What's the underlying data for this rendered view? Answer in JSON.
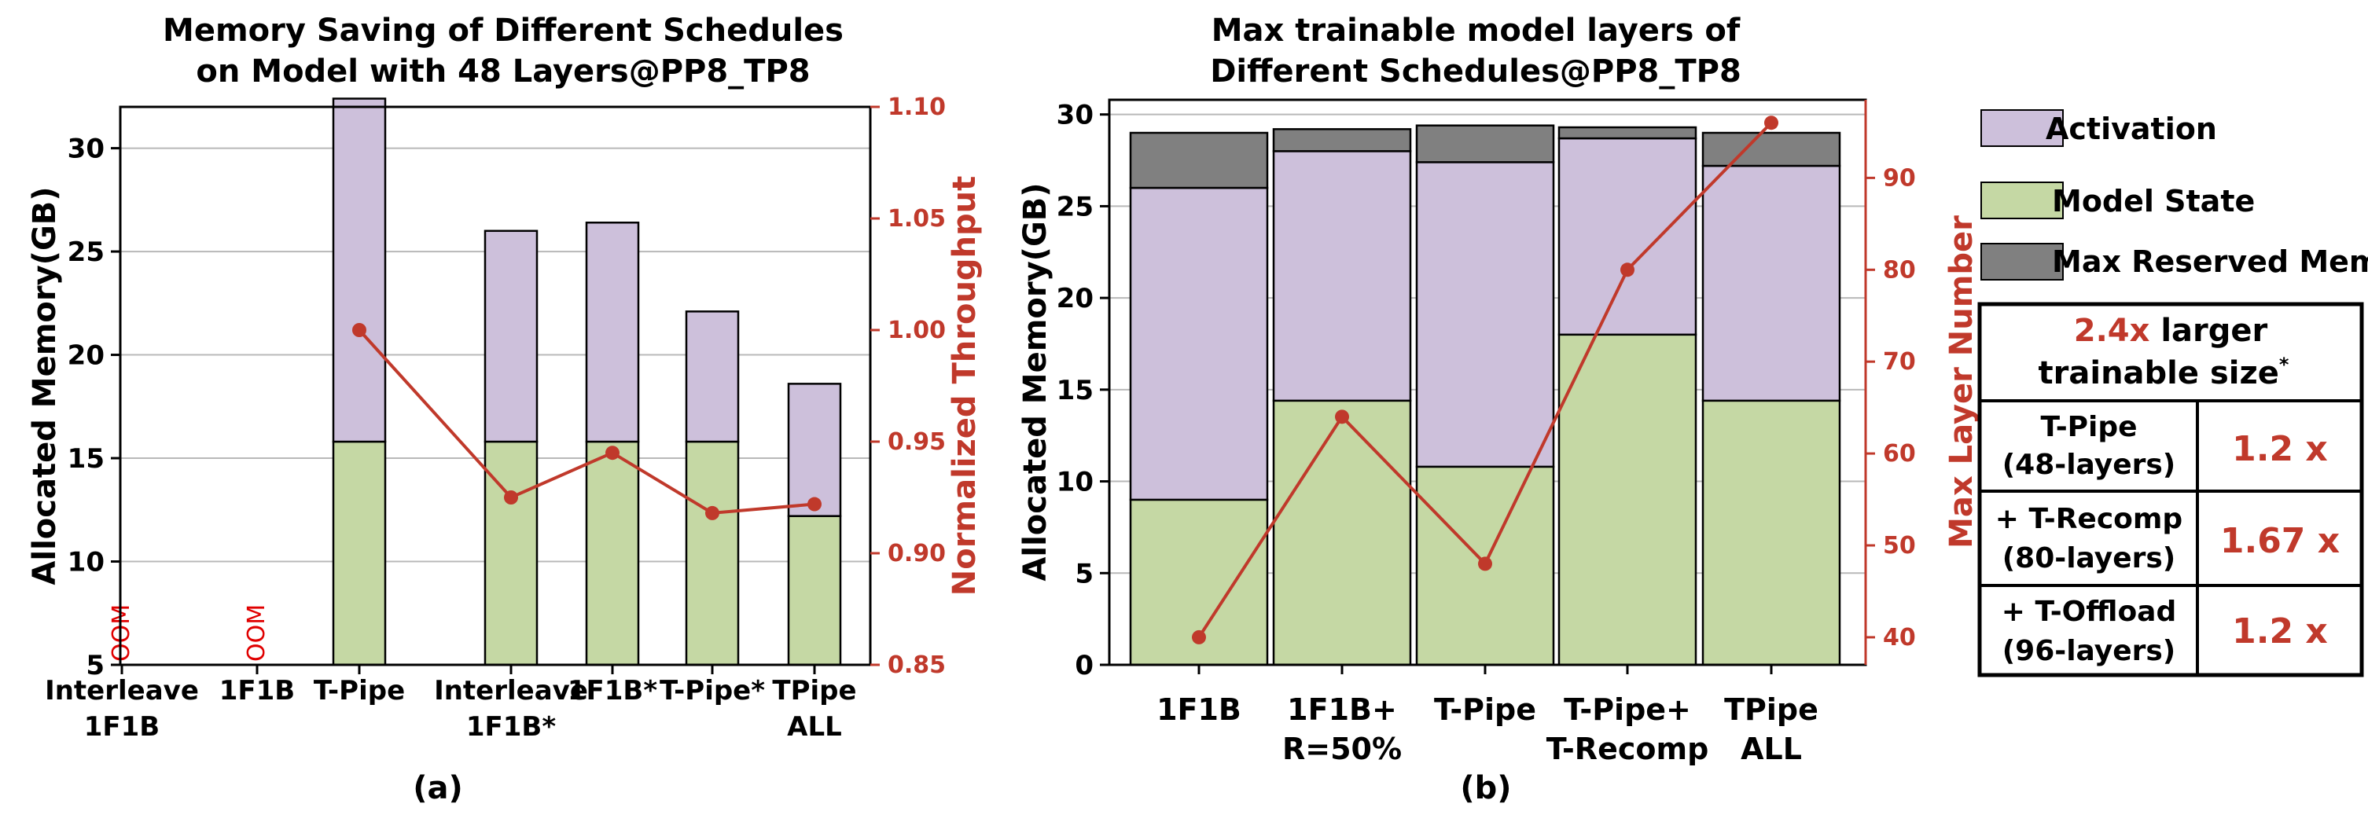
{
  "chart_data": [
    {
      "type": "bar",
      "panel_label": "(a)",
      "title": [
        "Memory Saving of Different Schedules",
        "on Model with 48 Layers@PP8_TP8"
      ],
      "ylabel": "Allocated Memory(GB)",
      "y2label": "Normalized Throughput",
      "ylim": [
        5,
        32
      ],
      "y2lim": [
        0.85,
        1.1
      ],
      "yticks": [
        "5",
        "10",
        "15",
        "20",
        "25",
        "30"
      ],
      "y2ticks": [
        "0.85",
        "0.90",
        "0.95",
        "1.00",
        "1.05",
        "1.10"
      ],
      "grid": true,
      "stacked": true,
      "categories": [
        [
          "Interleave",
          "1F1B"
        ],
        [
          "1F1B"
        ],
        [
          "T-Pipe"
        ],
        [
          "Interleave",
          "1F1B*"
        ],
        [
          "1F1B*"
        ],
        [
          "T-Pipe*"
        ],
        [
          "TPipe",
          "ALL"
        ]
      ],
      "series": [
        {
          "name": "Model State",
          "color": "#c5d8a4",
          "values": [
            null,
            null,
            10.8,
            10.8,
            10.8,
            10.8,
            7.2
          ]
        },
        {
          "name": "Activation",
          "color": "#cdc0db",
          "values": [
            null,
            null,
            16.6,
            10.2,
            10.6,
            6.3,
            6.4
          ]
        }
      ],
      "oom_label": "OOM",
      "oom_categories": [
        0,
        1
      ],
      "line": {
        "name": "Normalized Throughput",
        "color": "#c0392b",
        "values": [
          null,
          null,
          1.0,
          0.925,
          0.945,
          0.918,
          0.922
        ]
      }
    },
    {
      "type": "bar",
      "panel_label": "(b)",
      "title": [
        "Max trainable model layers of",
        "Different Schedules@PP8_TP8"
      ],
      "ylabel": "Allocated Memory(GB)",
      "y2label": "Max Layer Number",
      "ylim": [
        0,
        30.8
      ],
      "y2lim": [
        37,
        98.5
      ],
      "yticks": [
        "0",
        "5",
        "10",
        "15",
        "20",
        "25",
        "30"
      ],
      "y2ticks": [
        "40",
        "50",
        "60",
        "70",
        "80",
        "90"
      ],
      "grid": true,
      "stacked": true,
      "categories": [
        [
          "1F1B"
        ],
        [
          "1F1B+",
          "R=50%"
        ],
        [
          "T-Pipe"
        ],
        [
          "T-Pipe+",
          "T-Recomp"
        ],
        [
          "TPipe",
          "ALL"
        ]
      ],
      "series": [
        {
          "name": "Model State",
          "color": "#c5d8a4",
          "values": [
            9.0,
            14.4,
            10.8,
            18.0,
            14.4
          ]
        },
        {
          "name": "Activation",
          "color": "#cdc0db",
          "values": [
            17.0,
            13.6,
            16.6,
            10.7,
            12.8
          ]
        },
        {
          "name": "Max Reserved Mem",
          "color": "#808080",
          "values": [
            3.0,
            1.2,
            2.0,
            0.6,
            1.8
          ]
        }
      ],
      "line": {
        "name": "Max Layer Number",
        "color": "#c0392b",
        "values": [
          40,
          64,
          48,
          80,
          96
        ]
      }
    }
  ],
  "legend": [
    {
      "label": "Activation",
      "color": "#cdc0db"
    },
    {
      "label": "Model State",
      "color": "#c5d8a4"
    },
    {
      "label": "Max Reserved Mem",
      "color": "#808080"
    }
  ],
  "summary_table": {
    "header_highlight": "2.4x",
    "header_rest": "larger",
    "header_line2": "trainable size",
    "header_mark": "*",
    "rows": [
      {
        "name": "T-Pipe",
        "sub": "(48-layers)",
        "value": "1.2 x"
      },
      {
        "name": "+ T-Recomp",
        "sub": "(80-layers)",
        "value": "1.67 x"
      },
      {
        "name": "+ T-Offload",
        "sub": "(96-layers)",
        "value": "1.2 x"
      }
    ]
  },
  "colors": {
    "accent_red": "#c0392b",
    "oom_red": "#e00000"
  }
}
